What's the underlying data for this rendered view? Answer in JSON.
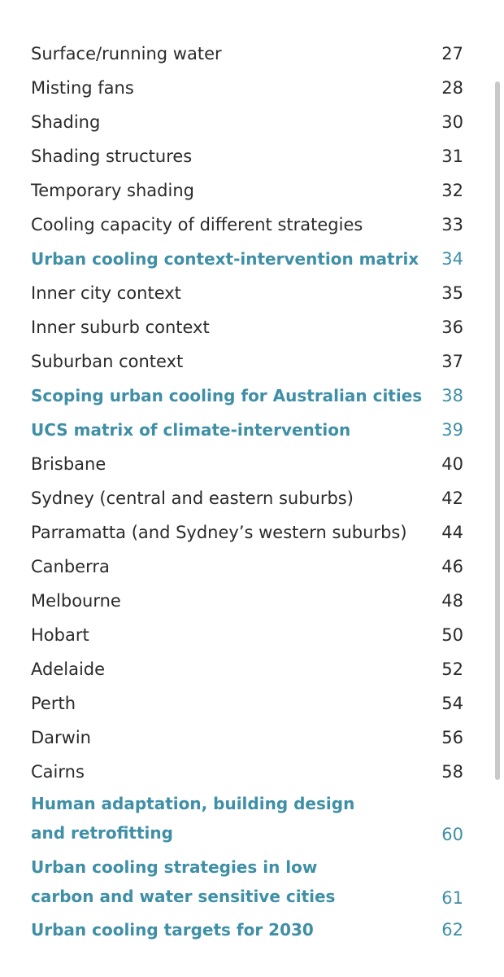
{
  "toc": {
    "entries": [
      {
        "title": "Surface/running water",
        "page": "27"
      },
      {
        "title": "Misting fans",
        "page": "28"
      },
      {
        "title": "Shading",
        "page": "30"
      },
      {
        "title": "Shading structures",
        "page": "31"
      },
      {
        "title": "Temporary shading",
        "page": "32"
      },
      {
        "title": "Cooling capacity of different strategies",
        "page": "33"
      },
      {
        "title": "Urban cooling context-intervention matrix",
        "page": "34"
      },
      {
        "title": "Inner city context",
        "page": "35"
      },
      {
        "title": "Inner suburb context",
        "page": "36"
      },
      {
        "title": "Suburban context",
        "page": "37"
      },
      {
        "title": "Scoping urban cooling for Australian cities",
        "page": "38"
      },
      {
        "title": "UCS matrix of climate-intervention",
        "page": "39"
      },
      {
        "title": "Brisbane",
        "page": "40"
      },
      {
        "title": "Sydney (central and eastern suburbs)",
        "page": "42"
      },
      {
        "title": "Parramatta (and Sydney’s western suburbs)",
        "page": "44"
      },
      {
        "title": "Canberra",
        "page": "46"
      },
      {
        "title": "Melbourne",
        "page": "48"
      },
      {
        "title": "Hobart",
        "page": "50"
      },
      {
        "title": "Adelaide",
        "page": "52"
      },
      {
        "title": "Perth",
        "page": "54"
      },
      {
        "title": "Darwin",
        "page": "56"
      },
      {
        "title": "Cairns",
        "page": "58"
      },
      {
        "title": "Human adaptation, building design and retrofitting",
        "page": "60"
      },
      {
        "title": "Urban cooling strategies in low carbon and water sensitive cities",
        "page": "61"
      },
      {
        "title": "Urban cooling targets for 2030",
        "page": "62"
      }
    ]
  },
  "colors": {
    "section_heading": "#3f8fa6",
    "body_text": "#2a2a2a",
    "scrollbar": "#c8c8c8"
  }
}
